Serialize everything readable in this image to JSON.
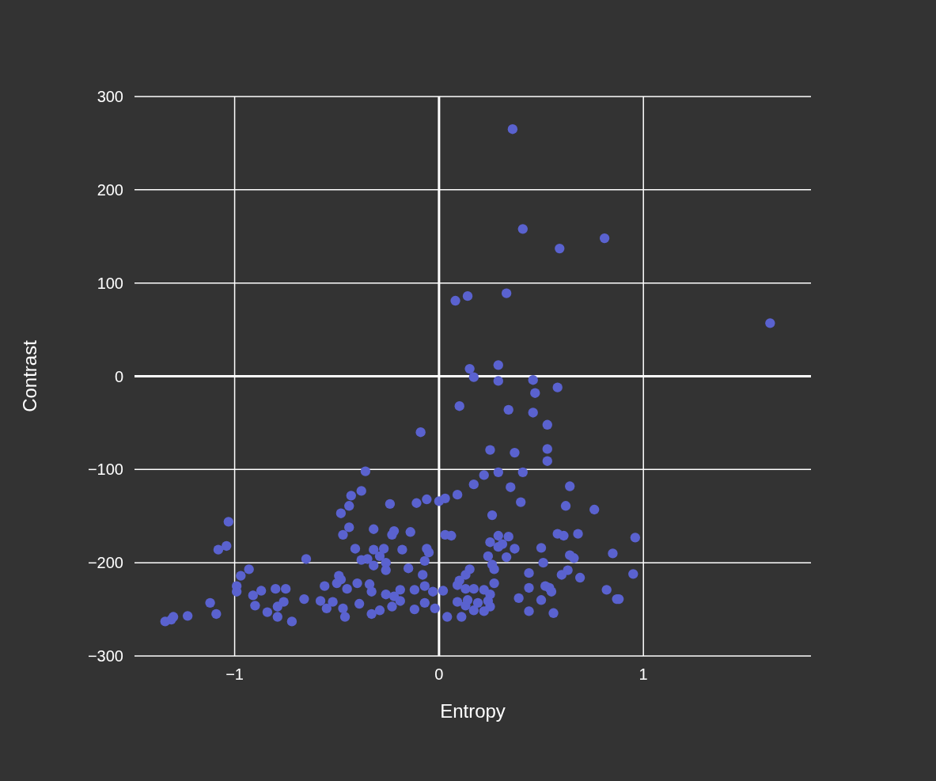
{
  "chart_data": {
    "type": "scatter",
    "xlabel": "Entropy",
    "ylabel": "Contrast",
    "xlim": [
      -1.49,
      1.82
    ],
    "ylim": [
      -300,
      300
    ],
    "xticks": [
      {
        "value": -1,
        "label": "−1"
      },
      0,
      1
    ],
    "yticks": [
      {
        "value": -300,
        "label": "−300"
      },
      {
        "value": -200,
        "label": "−200"
      },
      {
        "value": -100,
        "label": "−100"
      },
      0,
      100,
      200,
      300
    ],
    "grid": true,
    "marker": "circle",
    "series": [
      {
        "color": "#5a62cf",
        "x": [
          0.36,
          0.41,
          0.59,
          0.81,
          1.62,
          0.08,
          0.14,
          0.33,
          0.15,
          0.17,
          0.29,
          0.29,
          0.46,
          0.47,
          0.58,
          0.1,
          0.34,
          0.46,
          0.53,
          -0.09,
          0.25,
          0.37,
          0.53,
          0.53,
          -0.36,
          0.22,
          0.29,
          0.41,
          0.17,
          0.35,
          0.64,
          -0.38,
          -0.43,
          0.09,
          -0.11,
          -0.06,
          0.0,
          0.03,
          0.4,
          0.62,
          -0.44,
          -0.24,
          0.26,
          0.76,
          -0.48,
          -1.03,
          -0.32,
          -0.44,
          0.03,
          0.06,
          -0.14,
          -0.22,
          -0.23,
          -0.47,
          0.29,
          0.34,
          0.58,
          0.61,
          0.68,
          0.96,
          0.25,
          0.31,
          -1.08,
          -1.04,
          -0.41,
          -0.32,
          -0.27,
          -0.18,
          -0.06,
          -0.05,
          0.29,
          0.37,
          0.5,
          0.64,
          0.66,
          0.85,
          -0.65,
          -0.38,
          -0.35,
          -0.29,
          -0.26,
          -0.07,
          0.24,
          0.26,
          0.33,
          0.51,
          -0.93,
          -0.97,
          -0.49,
          -0.32,
          -0.26,
          -0.15,
          -0.08,
          0.27,
          0.44,
          0.6,
          0.63,
          0.69,
          0.95,
          -0.99,
          -0.99,
          -0.91,
          -0.87,
          -0.8,
          -0.75,
          -0.66,
          -0.56,
          -0.5,
          -0.48,
          -0.45,
          -0.4,
          -0.34,
          -0.33,
          -0.26,
          -0.22,
          -0.19,
          -0.12,
          -0.07,
          -0.03,
          0.02,
          0.09,
          0.1,
          0.13,
          0.15,
          0.13,
          0.17,
          0.22,
          0.25,
          0.27,
          0.44,
          0.52,
          0.54,
          0.39,
          0.5,
          0.55,
          0.82,
          -1.12,
          -1.23,
          -1.34,
          -1.31,
          -1.3,
          -1.09,
          -0.9,
          -0.84,
          -0.79,
          -0.76,
          -0.79,
          -0.72,
          -0.58,
          -0.55,
          -0.52,
          -0.47,
          -0.46,
          -0.39,
          -0.33,
          -0.29,
          -0.23,
          -0.19,
          -0.12,
          -0.07,
          -0.02,
          0.04,
          0.09,
          0.11,
          0.13,
          0.17,
          0.19,
          0.22,
          0.24,
          0.25,
          0.14,
          0.44,
          0.56,
          0.87,
          0.88
        ],
        "values": [
          265,
          158,
          137,
          148,
          57,
          81,
          86,
          89,
          8,
          -1,
          12,
          -5,
          -4,
          -18,
          -12,
          -32,
          -36,
          -39,
          -52,
          -60,
          -79,
          -82,
          -78,
          -91,
          -102,
          -106,
          -103,
          -103,
          -116,
          -119,
          -118,
          -123,
          -128,
          -127,
          -136,
          -132,
          -134,
          -131,
          -135,
          -139,
          -139,
          -137,
          -149,
          -143,
          -147,
          -156,
          -164,
          -162,
          -170,
          -171,
          -167,
          -166,
          -170,
          -170,
          -171,
          -172,
          -169,
          -171,
          -169,
          -173,
          -178,
          -180,
          -186,
          -182,
          -185,
          -186,
          -185,
          -186,
          -185,
          -189,
          -183,
          -185,
          -184,
          -192,
          -195,
          -190,
          -196,
          -197,
          -196,
          -193,
          -200,
          -198,
          -193,
          -202,
          -194,
          -200,
          -207,
          -214,
          -214,
          -203,
          -208,
          -206,
          -213,
          -207,
          -211,
          -213,
          -208,
          -216,
          -212,
          -225,
          -231,
          -235,
          -230,
          -228,
          -228,
          -239,
          -225,
          -222,
          -218,
          -228,
          -222,
          -223,
          -231,
          -234,
          -236,
          -229,
          -229,
          -225,
          -231,
          -230,
          -224,
          -219,
          -213,
          -207,
          -228,
          -228,
          -229,
          -234,
          -222,
          -227,
          -225,
          -227,
          -238,
          -240,
          -231,
          -229,
          -243,
          -257,
          -263,
          -261,
          -258,
          -255,
          -246,
          -253,
          -247,
          -242,
          -258,
          -263,
          -241,
          -249,
          -242,
          -249,
          -258,
          -244,
          -255,
          -251,
          -247,
          -241,
          -250,
          -243,
          -249,
          -258,
          -242,
          -258,
          -246,
          -251,
          -243,
          -252,
          -241,
          -247,
          -240,
          -252,
          -254,
          -239,
          -239
        ]
      }
    ]
  }
}
